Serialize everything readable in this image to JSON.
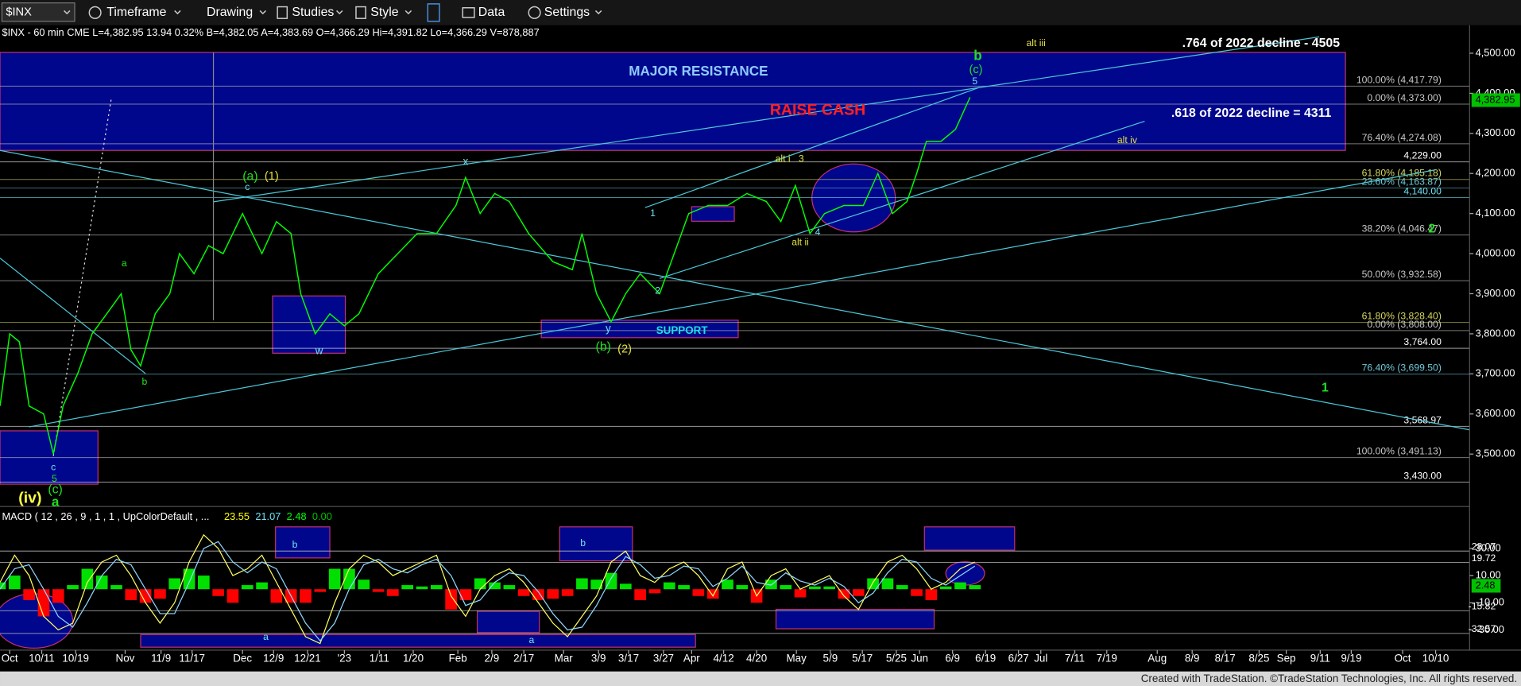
{
  "toolbar": {
    "symbol": "$INX",
    "items": [
      "Timeframe",
      "Drawing",
      "Studies",
      "Style",
      "Data",
      "Settings"
    ]
  },
  "header": "$INX - 60 min  CME  L=4,382.95 13.94 0.32% B=4,382.05 A=4,383.69 O=4,366.29 Hi=4,391.82 Lo=4,366.29 V=878,887",
  "footer": "Created with TradeStation. ©TradeStation Technologies, Inc. All rights reserved.",
  "chart_data": [
    {
      "type": "line",
      "color": "#00ff00",
      "x": [
        0,
        10,
        20,
        30,
        45,
        55,
        65,
        80,
        95,
        110,
        125,
        135,
        145,
        160,
        175,
        185,
        200,
        215,
        230,
        250,
        260,
        270,
        285,
        300,
        310,
        325,
        340,
        355,
        370,
        390,
        410,
        430,
        450,
        470,
        480,
        495,
        510,
        525,
        545,
        570,
        590,
        600,
        615,
        630,
        645,
        660,
        680,
        695,
        710,
        730,
        750,
        770,
        790,
        805,
        820,
        835,
        850,
        870,
        890,
        905,
        920,
        935,
        945,
        955,
        970,
        985,
        1000
      ],
      "values": [
        3620,
        3800,
        3780,
        3620,
        3600,
        3500,
        3620,
        3700,
        3800,
        3850,
        3900,
        3760,
        3720,
        3850,
        3900,
        4000,
        3950,
        4020,
        4000,
        4100,
        4050,
        4000,
        4080,
        4050,
        3900,
        3800,
        3850,
        3820,
        3850,
        3950,
        4000,
        4050,
        4050,
        4120,
        4190,
        4100,
        4150,
        4130,
        4050,
        3980,
        3960,
        4050,
        3900,
        3830,
        3900,
        3950,
        3900,
        4000,
        4100,
        4120,
        4120,
        4150,
        4130,
        4080,
        4170,
        4050,
        4100,
        4120,
        4120,
        4200,
        4100,
        4130,
        4200,
        4280,
        4280,
        4310,
        4390
      ],
      "xlim": [
        0,
        1515
      ],
      "ylim": [
        3374,
        4565
      ],
      "yticks": [
        {
          "value": 3500,
          "label": "3,500.00"
        },
        {
          "value": 3600,
          "label": "3,600.00"
        },
        {
          "value": 3700,
          "label": "3,700.00"
        },
        {
          "value": 3800,
          "label": "3,800.00"
        },
        {
          "value": 3900,
          "label": "3,900.00"
        },
        {
          "value": 4000,
          "label": "4,000.00"
        },
        {
          "value": 4100,
          "label": "4,100.00"
        },
        {
          "value": 4200,
          "label": "4,200.00"
        },
        {
          "value": 4300,
          "label": "4,300.00"
        },
        {
          "value": 4400,
          "label": "4,400.00"
        },
        {
          "value": 4500,
          "label": "4,500.00"
        }
      ],
      "xticks": [
        {
          "value": 10,
          "label": "Oct"
        },
        {
          "value": 43,
          "label": "10/11"
        },
        {
          "value": 78,
          "label": "10/19"
        },
        {
          "value": 129,
          "label": "Nov"
        },
        {
          "value": 166,
          "label": "11/9"
        },
        {
          "value": 198,
          "label": "11/17"
        },
        {
          "value": 250,
          "label": "Dec"
        },
        {
          "value": 282,
          "label": "12/9"
        },
        {
          "value": 317,
          "label": "12/21"
        },
        {
          "value": 355,
          "label": "'23"
        },
        {
          "value": 391,
          "label": "1/11"
        },
        {
          "value": 426,
          "label": "1/20"
        },
        {
          "value": 472,
          "label": "Feb"
        },
        {
          "value": 507,
          "label": "2/9"
        },
        {
          "value": 540,
          "label": "2/17"
        },
        {
          "value": 581,
          "label": "Mar"
        },
        {
          "value": 617,
          "label": "3/9"
        },
        {
          "value": 648,
          "label": "3/17"
        },
        {
          "value": 684,
          "label": "3/27"
        },
        {
          "value": 713,
          "label": "Apr"
        },
        {
          "value": 746,
          "label": "4/12"
        },
        {
          "value": 780,
          "label": "4/20"
        },
        {
          "value": 821,
          "label": "May"
        },
        {
          "value": 856,
          "label": "5/9"
        },
        {
          "value": 889,
          "label": "5/17"
        },
        {
          "value": 924,
          "label": "5/25"
        },
        {
          "value": 948,
          "label": "Jun"
        },
        {
          "value": 982,
          "label": "6/9"
        },
        {
          "value": 1016,
          "label": "6/19"
        },
        {
          "value": 1050,
          "label": "6/27"
        },
        {
          "value": 1073,
          "label": "Jul"
        },
        {
          "value": 1108,
          "label": "7/11"
        },
        {
          "value": 1141,
          "label": "7/19"
        },
        {
          "value": 1193,
          "label": "Aug"
        },
        {
          "value": 1229,
          "label": "8/9"
        },
        {
          "value": 1263,
          "label": "8/17"
        },
        {
          "value": 1298,
          "label": "8/25"
        },
        {
          "value": 1326,
          "label": "Sep"
        },
        {
          "value": 1361,
          "label": "9/11"
        },
        {
          "value": 1393,
          "label": "9/19"
        },
        {
          "value": 1446,
          "label": "Oct"
        },
        {
          "value": 1480,
          "label": "10/10"
        }
      ],
      "last_value": {
        "value": 4382.95,
        "label": "4,382.95"
      },
      "levels": [
        {
          "value": 4417.79,
          "label": "100.00% (4,417.79)",
          "color": "#c8c8c8"
        },
        {
          "value": 4373.0,
          "label": "0.00% (4,373.00)",
          "color": "#c8c8c8"
        },
        {
          "value": 4274.08,
          "label": "76.40% (4,274.08)",
          "color": "#c8c8c8"
        },
        {
          "value": 4229.0,
          "label": "4,229.00",
          "color": "#ffffff"
        },
        {
          "value": 4185.18,
          "label": "61.80% (4,185.18)",
          "color": "#d8d860"
        },
        {
          "value": 4163.87,
          "label": "23.60% (4,163.87)",
          "color": "#6fc8d8"
        },
        {
          "value": 4140.0,
          "label": "4,140.00",
          "color": "#6fe0f0"
        },
        {
          "value": 4046.47,
          "label": "38.20% (4,046.47)",
          "color": "#c8c8c8"
        },
        {
          "value": 3932.58,
          "label": "50.00% (3,932.58)",
          "color": "#c8c8c8"
        },
        {
          "value": 3828.4,
          "label": "61.80% (3,828.40)",
          "color": "#d8d860"
        },
        {
          "value": 3808.0,
          "label": "0.00% (3,808.00)",
          "color": "#c8c8c8"
        },
        {
          "value": 3764.0,
          "label": "3,764.00",
          "color": "#ffffff"
        },
        {
          "value": 3699.5,
          "label": "76.40% (3,699.50)",
          "color": "#6fc8d8"
        },
        {
          "value": 3568.97,
          "label": "3,568.97",
          "color": "#ffffff"
        },
        {
          "value": 3491.13,
          "label": "100.00% (3,491.13)",
          "color": "#c8c8c8"
        },
        {
          "value": 3430.0,
          "label": "3,430.00",
          "color": "#ffffff"
        }
      ],
      "annotations": [
        "MAJOR RESISTANCE",
        "RAISE CASH",
        ".764 of 2022 decline - 4505",
        ".618 of 2022 decline = 4311",
        "alt iii",
        "alt iv",
        "b",
        "(c)",
        "5",
        "(a)",
        "(1)",
        "c",
        "x",
        "alt i",
        "3",
        "1",
        "2",
        "4",
        "alt ii",
        "y",
        "(b)",
        "(2)",
        "SUPPORT",
        "w",
        "a",
        "b",
        "c",
        "5",
        "(iv)",
        "(c)",
        "a",
        "2",
        "1"
      ]
    },
    {
      "type": "macd",
      "title": "MACD ( 12 , 26 , 9 , 1 , 1 , UpColorDefault , ...",
      "readings": [
        "23.55",
        "21.07",
        "2.48",
        "0.00"
      ],
      "reading_colors": [
        "#ffff00",
        "#6fe0f0",
        "#00ff00",
        "#00c000"
      ],
      "x": [
        0,
        15,
        30,
        45,
        60,
        75,
        90,
        105,
        120,
        135,
        150,
        165,
        180,
        195,
        210,
        225,
        240,
        255,
        270,
        285,
        300,
        315,
        330,
        345,
        360,
        375,
        390,
        405,
        420,
        435,
        450,
        465,
        480,
        495,
        510,
        525,
        540,
        555,
        570,
        585,
        600,
        615,
        630,
        645,
        660,
        675,
        690,
        705,
        720,
        735,
        750,
        765,
        780,
        795,
        810,
        825,
        840,
        855,
        870,
        885,
        900,
        915,
        930,
        945,
        960,
        975,
        990,
        1005
      ],
      "series": [
        {
          "color": "#ffff60",
          "values": [
            5,
            25,
            10,
            -20,
            -30,
            -25,
            5,
            20,
            25,
            10,
            -10,
            -25,
            -10,
            20,
            40,
            30,
            10,
            15,
            25,
            5,
            -15,
            -35,
            -40,
            -10,
            15,
            25,
            20,
            10,
            15,
            20,
            25,
            -5,
            -20,
            0,
            10,
            15,
            5,
            -10,
            -25,
            -35,
            -20,
            -5,
            20,
            28,
            10,
            5,
            15,
            20,
            10,
            -5,
            15,
            20,
            -5,
            10,
            15,
            0,
            5,
            10,
            -5,
            -15,
            5,
            20,
            25,
            15,
            0,
            5,
            15,
            20
          ]
        },
        {
          "color": "#8fd8ff",
          "values": [
            0,
            15,
            18,
            0,
            -20,
            -28,
            -10,
            10,
            22,
            18,
            0,
            -18,
            -18,
            5,
            30,
            35,
            20,
            12,
            20,
            15,
            -5,
            -25,
            -38,
            -25,
            0,
            18,
            22,
            15,
            12,
            18,
            22,
            10,
            -12,
            -8,
            5,
            12,
            10,
            -2,
            -18,
            -30,
            -28,
            -12,
            8,
            24,
            18,
            8,
            10,
            17,
            15,
            2,
            8,
            17,
            5,
            3,
            12,
            6,
            3,
            8,
            2,
            -10,
            -3,
            12,
            22,
            20,
            8,
            3,
            10,
            17
          ]
        }
      ],
      "histogram": [
        5,
        10,
        -8,
        -20,
        -10,
        3,
        15,
        10,
        3,
        -8,
        -10,
        -7,
        8,
        15,
        10,
        -5,
        -10,
        3,
        5,
        -10,
        -10,
        -10,
        -2,
        15,
        15,
        7,
        -2,
        -5,
        3,
        2,
        3,
        -15,
        -8,
        8,
        5,
        3,
        -5,
        -8,
        -7,
        -5,
        8,
        7,
        12,
        4,
        -8,
        -3,
        5,
        3,
        -5,
        -7,
        7,
        3,
        -10,
        7,
        3,
        -6,
        2,
        2,
        -7,
        -5,
        8,
        8,
        3,
        -5,
        -8,
        2,
        5,
        3
      ],
      "up_color": "#00e000",
      "down_color": "#ff0000",
      "ylim": [
        -43.4,
        48
      ],
      "yticks": [
        {
          "value": 30,
          "label": "30.00"
        },
        {
          "value": 10,
          "label": "10.00"
        },
        {
          "value": -10,
          "label": "-10.00"
        },
        {
          "value": -30,
          "label": "-30.00"
        }
      ],
      "levels": [
        28.07,
        19.72,
        -15.82,
        -32.57
      ],
      "last_value": {
        "value": 2.48,
        "label": "2.48"
      },
      "annotations": [
        "b",
        "b",
        "a",
        "a"
      ]
    }
  ]
}
